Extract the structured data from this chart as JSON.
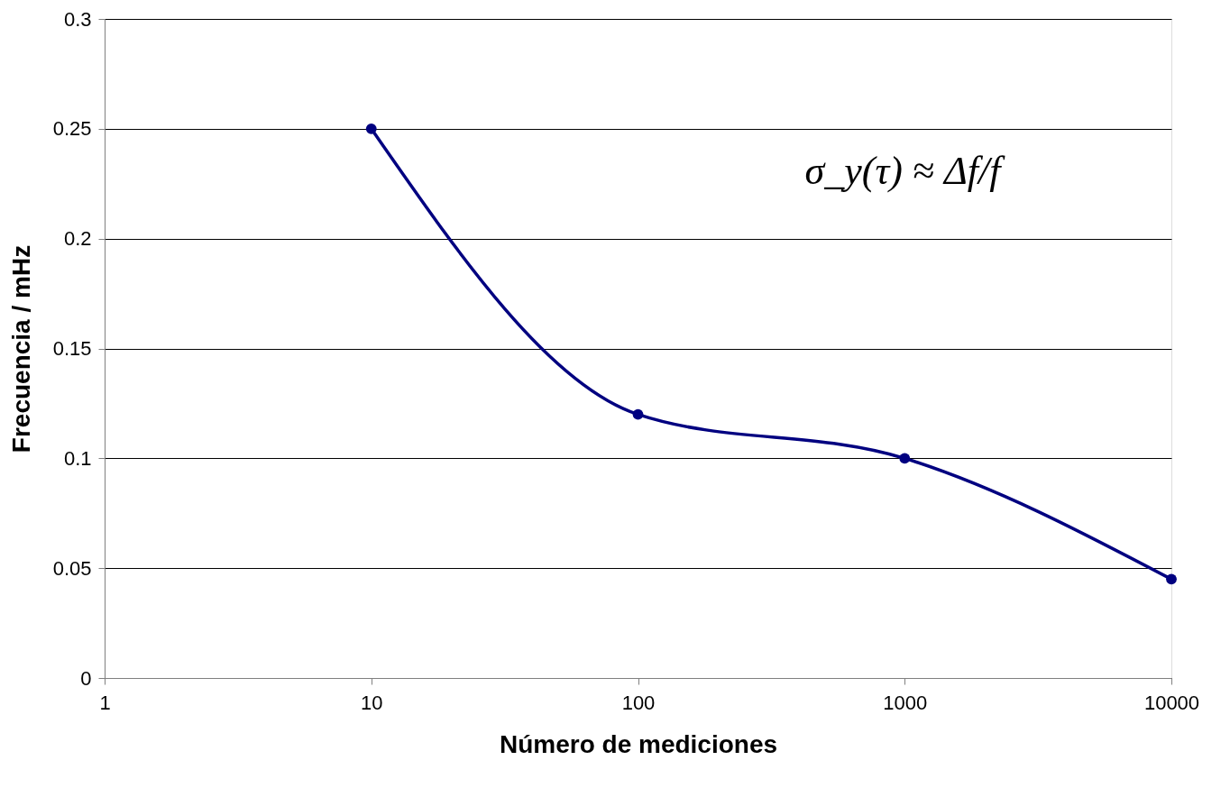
{
  "chart_data": {
    "type": "line",
    "xlabel": "Número de mediciones",
    "ylabel": "Frecuencia / mHz",
    "x": [
      10,
      100,
      1000,
      10000
    ],
    "series": [
      {
        "color": "#000080",
        "values": [
          0.25,
          0.12,
          0.1,
          0.045
        ]
      }
    ],
    "log": "x",
    "xlim": [
      1,
      10000
    ],
    "xticks": [
      1,
      10,
      100,
      1000,
      10000
    ],
    "ylim": [
      0,
      0.3
    ],
    "yticks": [
      0,
      0.05,
      0.1,
      0.15,
      0.2,
      0.25,
      0.3
    ],
    "grid": "y",
    "marker": "circle",
    "line_style": "solid",
    "annotations": [
      "σ_y(τ) ≈ Δf/f"
    ]
  }
}
